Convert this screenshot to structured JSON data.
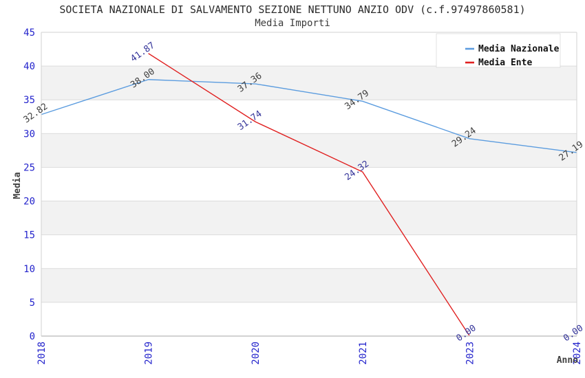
{
  "chart_data": {
    "type": "line",
    "title": "SOCIETA NAZIONALE DI SALVAMENTO SEZIONE NETTUNO ANZIO ODV (c.f.97497860581)",
    "subtitle": "Media Importi",
    "xlabel": "Anno",
    "ylabel": "Media",
    "x": [
      "2018",
      "2019",
      "2020",
      "2021",
      "2023",
      "2024"
    ],
    "ylim": [
      0,
      45
    ],
    "ytick_step": 5,
    "grid": "horizontal-gridlines-with-alternating-bands",
    "legend_position": "top-right",
    "value_label_decimals": 2,
    "series": [
      {
        "name": "Media Nazionale",
        "color": "#5b9cdf",
        "label_color": "#3d3d3d",
        "values": [
          32.82,
          38.0,
          37.36,
          34.79,
          29.24,
          27.19
        ]
      },
      {
        "name": "Media Ente",
        "color": "#e02020",
        "label_color": "#333399",
        "values": [
          null,
          41.87,
          31.74,
          24.32,
          0.0,
          0.0
        ]
      }
    ],
    "colors": {
      "tick_label": "#2424cc",
      "axis_label": "#404040",
      "title": "#2b2b2b",
      "subtitle": "#3c3c3c",
      "band_fill": "#f2f2f2",
      "grid_line": "#dcdcdc",
      "plot_border": "#d2d2d2",
      "background": "#ffffff",
      "legend_bg": "#ffffff",
      "legend_border": "#d9d9d9",
      "legend_text": "#111111"
    }
  }
}
